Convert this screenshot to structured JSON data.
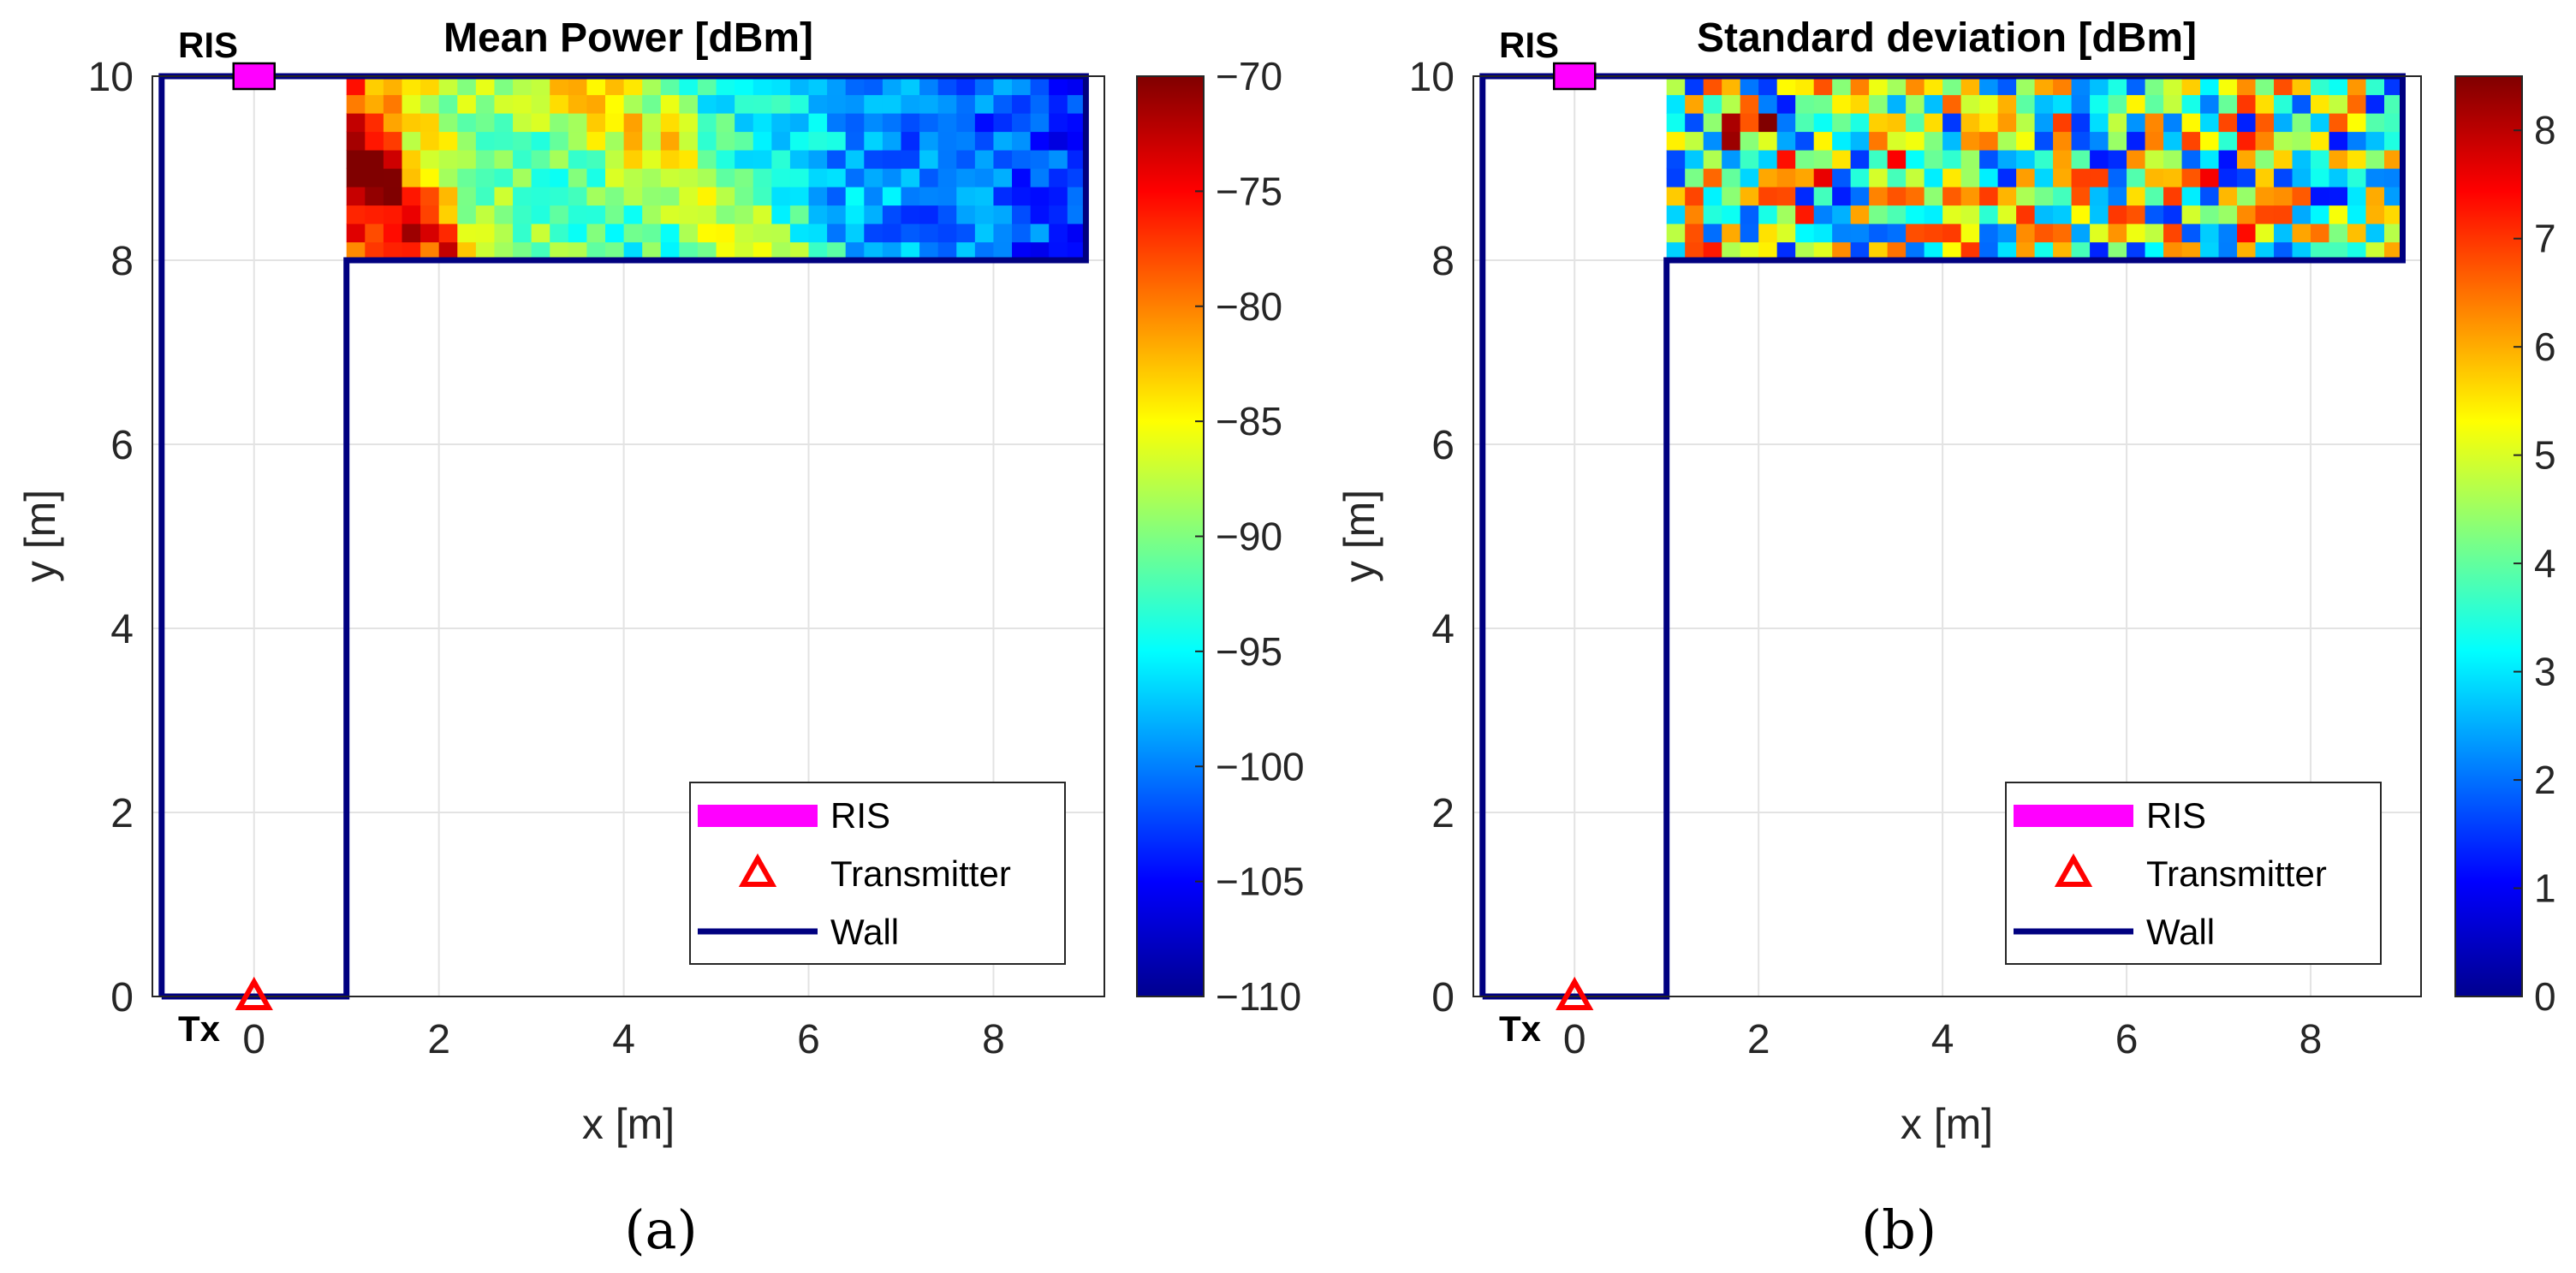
{
  "colorscale": [
    "#00008F",
    "#0000FF",
    "#0080FF",
    "#00FFFF",
    "#80FF80",
    "#FFFF00",
    "#FF8000",
    "#FF0000",
    "#800000"
  ],
  "chart_data": [
    {
      "type": "heatmap",
      "panel_label": "(a)",
      "title": "Mean Power [dBm]",
      "xlabel": "x [m]",
      "ylabel": "y [m]",
      "xlim": [
        -1.1,
        9.2
      ],
      "ylim": [
        0,
        10
      ],
      "xticks": [
        0,
        2,
        4,
        6,
        8
      ],
      "yticks": [
        0,
        2,
        4,
        6,
        8,
        10
      ],
      "grid": true,
      "colorbar": {
        "min": -110,
        "max": -70,
        "ticks": [
          -70,
          -75,
          -80,
          -85,
          -90,
          -95,
          -100,
          -105,
          -110
        ]
      },
      "heatmap_region": {
        "x": [
          1,
          9
        ],
        "y": [
          8,
          10
        ],
        "cell": 0.2,
        "pattern": "mean_power"
      },
      "walls": [
        [
          -1,
          0
        ],
        [
          -1,
          10
        ],
        [
          9,
          10
        ],
        [
          9,
          8
        ],
        [
          1,
          8
        ],
        [
          1,
          0
        ],
        [
          -1,
          0
        ]
      ],
      "ris": {
        "x": 0,
        "y": 10,
        "label": "RIS"
      },
      "transmitter": {
        "x": 0,
        "y": 0,
        "label": "Tx"
      },
      "legend": {
        "position": "bottom-right",
        "entries": [
          "RIS",
          "Transmitter",
          "Wall"
        ]
      }
    },
    {
      "type": "heatmap",
      "panel_label": "(b)",
      "title": "Standard deviation [dBm]",
      "xlabel": "x [m]",
      "ylabel": "y [m]",
      "xlim": [
        -1.1,
        9.2
      ],
      "ylim": [
        0,
        10
      ],
      "xticks": [
        0,
        2,
        4,
        6,
        8
      ],
      "yticks": [
        0,
        2,
        4,
        6,
        8,
        10
      ],
      "grid": true,
      "colorbar": {
        "min": 0,
        "max": 8.5,
        "ticks": [
          8,
          7,
          6,
          5,
          4,
          3,
          2,
          1,
          0
        ]
      },
      "heatmap_region": {
        "x": [
          1,
          9
        ],
        "y": [
          8,
          10
        ],
        "cell": 0.2,
        "pattern": "std_dev"
      },
      "walls": [
        [
          -1,
          0
        ],
        [
          -1,
          10
        ],
        [
          9,
          10
        ],
        [
          9,
          8
        ],
        [
          1,
          8
        ],
        [
          1,
          0
        ],
        [
          -1,
          0
        ]
      ],
      "ris": {
        "x": 0,
        "y": 10,
        "label": "RIS"
      },
      "transmitter": {
        "x": 0,
        "y": 0,
        "label": "Tx"
      },
      "legend": {
        "position": "bottom-right",
        "entries": [
          "RIS",
          "Transmitter",
          "Wall"
        ]
      }
    }
  ]
}
